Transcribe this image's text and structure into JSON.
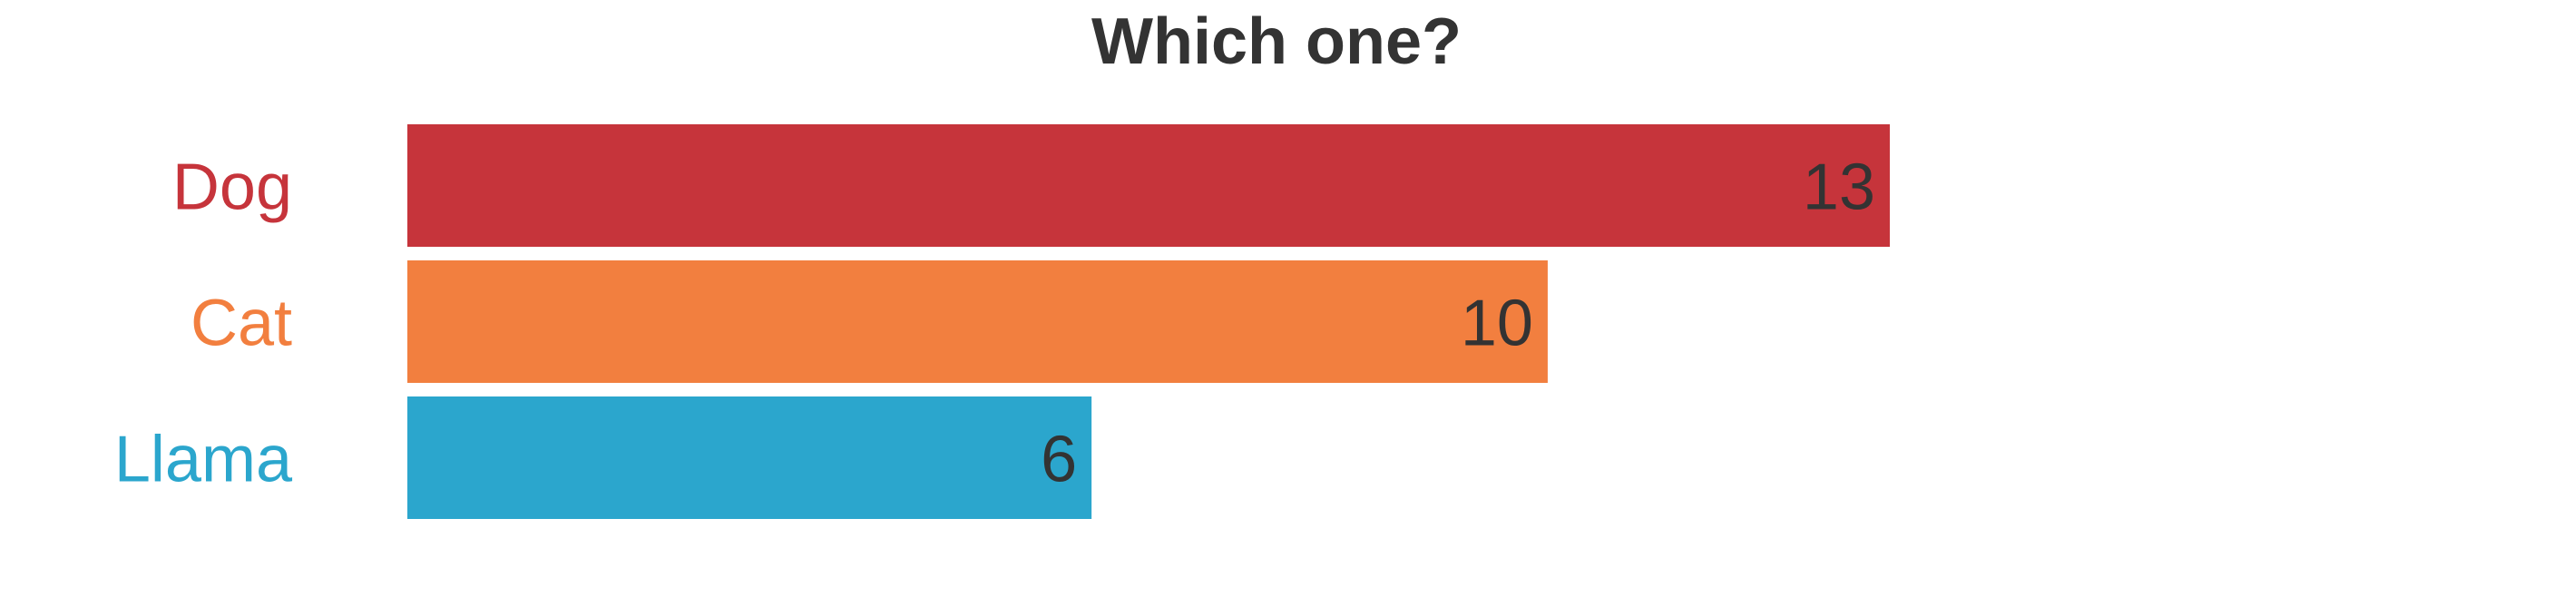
{
  "chart_data": {
    "type": "bar",
    "orientation": "horizontal",
    "title": "Which one?",
    "xlabel": "",
    "ylabel": "",
    "categories": [
      "Dog",
      "Cat",
      "Llama"
    ],
    "values": [
      13,
      10,
      6
    ],
    "colors": [
      "#c6343b",
      "#f27f3f",
      "#2ba6cd"
    ],
    "value_label_color": "#333333",
    "show_value_labels": true,
    "grid": false,
    "legend": "none",
    "xlim": [
      0,
      13
    ]
  }
}
